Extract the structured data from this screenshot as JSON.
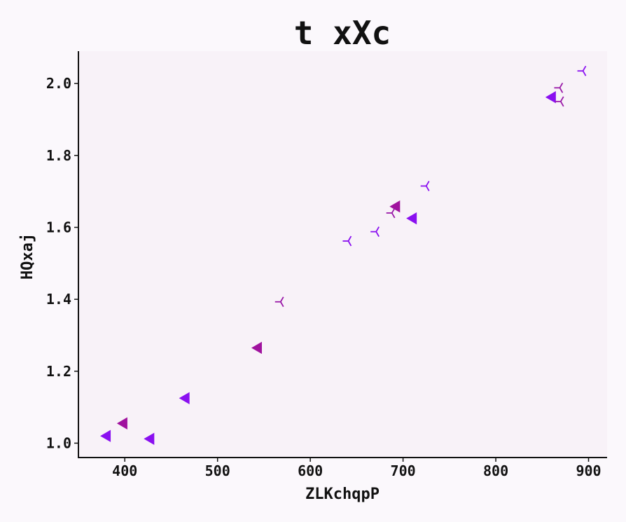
{
  "chart_data": {
    "type": "scatter",
    "title": "t xXc",
    "xlabel": "ZLKchqpP",
    "ylabel": "HQxaj",
    "xlim": [
      350,
      920
    ],
    "ylim": [
      0.96,
      2.09
    ],
    "xticks": [
      400,
      500,
      600,
      700,
      800,
      900
    ],
    "yticks": [
      1.0,
      1.2,
      1.4,
      1.6,
      1.8,
      2.0
    ],
    "xtick_labels": [
      "400",
      "500",
      "600",
      "700",
      "800",
      "900"
    ],
    "ytick_labels": [
      "1.0",
      "1.2",
      "1.4",
      "1.6",
      "1.8",
      "2.0"
    ],
    "grid": false,
    "legend": "none",
    "series": [
      {
        "marker": "triangle-left",
        "color": "#8a10f0",
        "points": [
          [
            381,
            1.02
          ],
          [
            428,
            1.012
          ],
          [
            466,
            1.125
          ],
          [
            711,
            1.625
          ],
          [
            861,
            1.962
          ]
        ]
      },
      {
        "marker": "triangle-left",
        "color": "#a0129e",
        "points": [
          [
            399,
            1.055
          ],
          [
            544,
            1.265
          ],
          [
            693,
            1.658
          ]
        ]
      },
      {
        "marker": "tri-right",
        "color": "#9a1aa8",
        "points": [
          [
            568,
            1.393
          ],
          [
            688,
            1.64
          ],
          [
            869,
            1.988
          ],
          [
            870,
            1.95
          ]
        ]
      },
      {
        "marker": "tri-right",
        "color": "#8a10f0",
        "points": [
          [
            641,
            1.562
          ],
          [
            671,
            1.588
          ],
          [
            725,
            1.715
          ],
          [
            894,
            2.035
          ]
        ]
      }
    ]
  }
}
